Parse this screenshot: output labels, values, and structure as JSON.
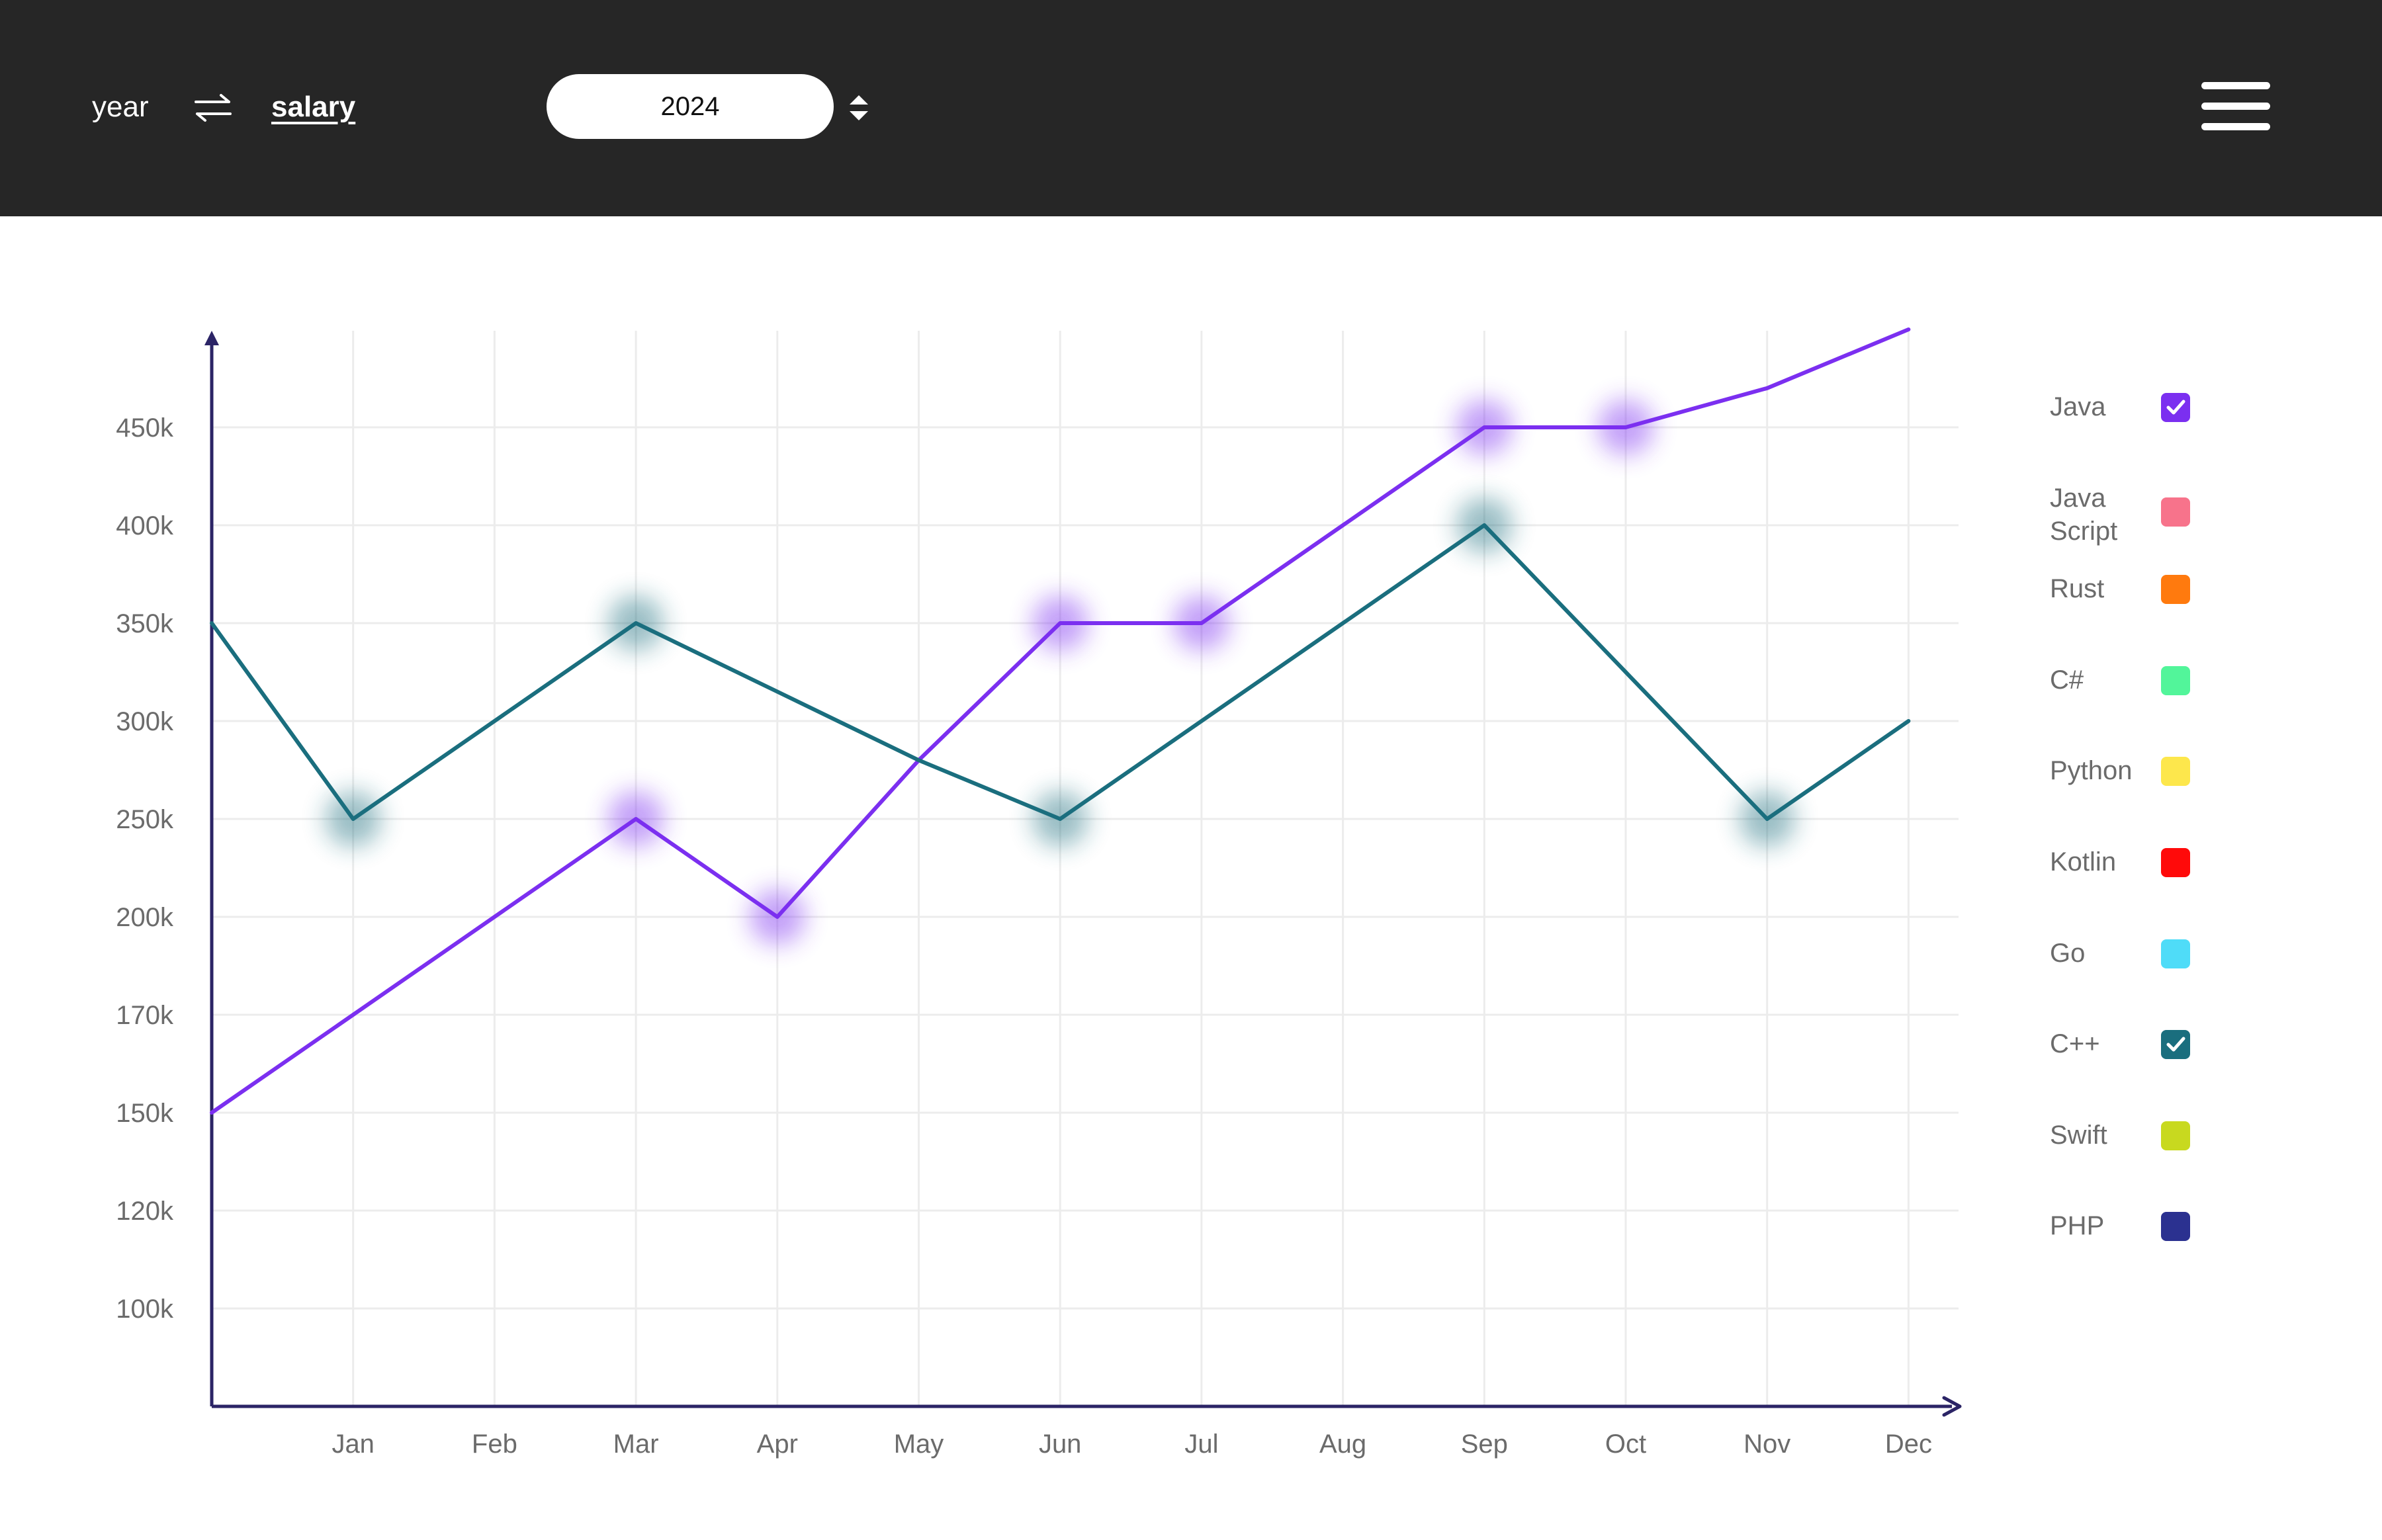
{
  "header": {
    "toggle_left": "year",
    "toggle_right": "salary",
    "year_value": "2024"
  },
  "chart_data": {
    "type": "line",
    "categories": [
      "Jan",
      "Feb",
      "Mar",
      "Apr",
      "May",
      "Jun",
      "Jul",
      "Aug",
      "Sep",
      "Oct",
      "Nov",
      "Dec"
    ],
    "y_ticks": [
      "100k",
      "120k",
      "150k",
      "170k",
      "200k",
      "250k",
      "300k",
      "350k",
      "400k",
      "450k"
    ],
    "series": [
      {
        "name": "Java",
        "color": "#7b2ff0",
        "points": [
          [
            "start",
            "150k"
          ],
          [
            "Jan",
            "170k"
          ],
          [
            "Feb",
            "200k"
          ],
          [
            "Mar",
            "250k"
          ],
          [
            "Apr",
            "200k"
          ],
          [
            "May",
            "280k"
          ],
          [
            "Jun",
            "350k"
          ],
          [
            "Jul",
            "350k"
          ],
          [
            "Aug",
            "400k"
          ],
          [
            "Sep",
            "450k"
          ],
          [
            "Oct",
            "450k"
          ],
          [
            "Nov",
            "470k"
          ],
          [
            "Dec",
            "500k"
          ]
        ]
      },
      {
        "name": "C++",
        "color": "#1a6e7e",
        "points": [
          [
            "start",
            "350k"
          ],
          [
            "Jan",
            "250k"
          ],
          [
            "Feb",
            "300k"
          ],
          [
            "Mar",
            "350k"
          ],
          [
            "Apr",
            "315k"
          ],
          [
            "May",
            "280k"
          ],
          [
            "Jun",
            "250k"
          ],
          [
            "Jul",
            "300k"
          ],
          [
            "Aug",
            "350k"
          ],
          [
            "Sep",
            "400k"
          ],
          [
            "Oct",
            "325k"
          ],
          [
            "Nov",
            "250k"
          ],
          [
            "Dec",
            "300k"
          ]
        ]
      }
    ],
    "grid": true,
    "legend_position": "right"
  },
  "legend": [
    {
      "label": "Java",
      "color": "#7b2ff0",
      "checked": true
    },
    {
      "label": "Java\nScript",
      "color": "#f7738b",
      "checked": false
    },
    {
      "label": "Rust",
      "color": "#ff7a0e",
      "checked": false
    },
    {
      "label": "C#",
      "color": "#52f59a",
      "checked": false
    },
    {
      "label": "Python",
      "color": "#fde74c",
      "checked": false
    },
    {
      "label": "Kotlin",
      "color": "#ff0a0a",
      "checked": false
    },
    {
      "label": "Go",
      "color": "#4fdcf8",
      "checked": false
    },
    {
      "label": "C++",
      "color": "#1a6e7e",
      "checked": true
    },
    {
      "label": "Swift",
      "color": "#c8d91f",
      "checked": false
    },
    {
      "label": "PHP",
      "color": "#2b3190",
      "checked": false
    }
  ]
}
